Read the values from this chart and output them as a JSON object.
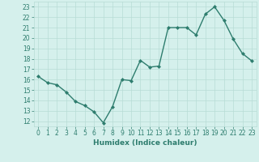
{
  "x": [
    0,
    1,
    2,
    3,
    4,
    5,
    6,
    7,
    8,
    9,
    10,
    11,
    12,
    13,
    14,
    15,
    16,
    17,
    18,
    19,
    20,
    21,
    22,
    23
  ],
  "y": [
    16.3,
    15.7,
    15.5,
    14.8,
    13.9,
    13.5,
    12.9,
    11.85,
    13.4,
    16.0,
    15.9,
    17.85,
    17.2,
    17.3,
    21.0,
    21.0,
    21.0,
    20.3,
    22.3,
    23.0,
    21.7,
    19.9,
    18.5,
    17.8
  ],
  "line_color": "#2E7D6E",
  "marker": "D",
  "marker_size": 2,
  "bg_color": "#d5f0ec",
  "grid_color": "#b8dcd6",
  "xlabel": "Humidex (Indice chaleur)",
  "xlim": [
    -0.5,
    23.5
  ],
  "ylim": [
    11.5,
    23.5
  ],
  "yticks": [
    12,
    13,
    14,
    15,
    16,
    17,
    18,
    19,
    20,
    21,
    22,
    23
  ],
  "xticks": [
    0,
    1,
    2,
    3,
    4,
    5,
    6,
    7,
    8,
    9,
    10,
    11,
    12,
    13,
    14,
    15,
    16,
    17,
    18,
    19,
    20,
    21,
    22,
    23
  ],
  "xlabel_fontsize": 6.5,
  "tick_fontsize": 5.5,
  "line_width": 1.0
}
